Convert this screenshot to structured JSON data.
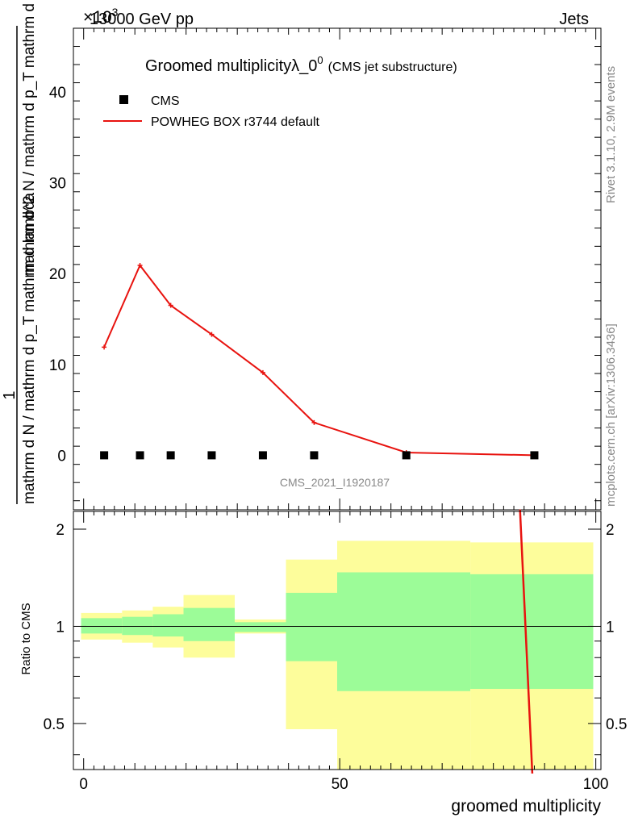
{
  "header": {
    "energy_label": "13000 GeV pp",
    "process_label": "Jets",
    "exponent_label": "×10",
    "exponent_power": "3"
  },
  "side_labels": {
    "rivet": "Rivet 3.1.10,  2.9M events",
    "mcplots": "mcplots.cern.ch [arXiv:1306.3436]"
  },
  "chart_data": [
    {
      "type": "line",
      "title": "Groomed multiplicityλ_0",
      "title_sup": "0",
      "title_suffix": "(CMS jet substructure)",
      "ylabel_numerator": "1",
      "ylabel_denominator": "mathrm d N / mathrm d p_T mathrm d lambda",
      "ylabel_top": "mathrm d^2 N / mathrm d p_T mathrm d lambda",
      "xlim": [
        -2,
        101
      ],
      "ylim": [
        -6,
        47
      ],
      "yticks": [
        0,
        10,
        20,
        30,
        40
      ],
      "ytick_labels": [
        "0",
        "10",
        "20",
        "30",
        "40"
      ],
      "watermark": "CMS_2021_I1920187",
      "legend": [
        {
          "name": "CMS",
          "marker": "square",
          "color": "#000000"
        },
        {
          "name": "POWHEG BOX r3744 default",
          "marker": "line",
          "color": "#e8130f"
        }
      ],
      "series": [
        {
          "name": "CMS",
          "x": [
            4,
            11,
            17,
            25,
            35,
            45,
            63,
            88
          ],
          "y": [
            0,
            0,
            0,
            0,
            0,
            0,
            0,
            0
          ]
        },
        {
          "name": "POWHEG BOX r3744 default",
          "x": [
            4,
            11,
            17,
            25,
            35,
            45,
            63,
            88
          ],
          "y": [
            11.9,
            20.9,
            16.5,
            13.3,
            9.1,
            3.6,
            0.3,
            0.0
          ]
        }
      ]
    },
    {
      "type": "area",
      "ylabel": "Ratio to CMS",
      "xlabel": "groomed multiplicity",
      "xlim": [
        -2,
        101
      ],
      "ylim": [
        0.36,
        2.27
      ],
      "yscale": "log",
      "xticks": [
        0,
        50,
        100
      ],
      "xtick_labels": [
        "0",
        "50",
        "100"
      ],
      "yticks": [
        0.5,
        1,
        2
      ],
      "ytick_labels": [
        "0.5",
        "1",
        "2"
      ],
      "bins": [
        {
          "x0": -0.5,
          "x1": 7.5,
          "inner": [
            0.95,
            1.06
          ],
          "outer": [
            0.91,
            1.1
          ]
        },
        {
          "x0": 7.5,
          "x1": 13.5,
          "inner": [
            0.94,
            1.07
          ],
          "outer": [
            0.89,
            1.12
          ]
        },
        {
          "x0": 13.5,
          "x1": 19.5,
          "inner": [
            0.93,
            1.09
          ],
          "outer": [
            0.86,
            1.15
          ]
        },
        {
          "x0": 19.5,
          "x1": 29.5,
          "inner": [
            0.9,
            1.14
          ],
          "outer": [
            0.8,
            1.25
          ]
        },
        {
          "x0": 29.5,
          "x1": 39.5,
          "inner": [
            0.96,
            1.03
          ],
          "outer": [
            0.95,
            1.05
          ]
        },
        {
          "x0": 39.5,
          "x1": 49.5,
          "inner": [
            0.78,
            1.27
          ],
          "outer": [
            0.48,
            1.61
          ]
        },
        {
          "x0": 49.5,
          "x1": 75.5,
          "inner": [
            0.63,
            1.47
          ],
          "outer": [
            0.36,
            1.84
          ]
        },
        {
          "x0": 75.5,
          "x1": 99.5,
          "inner": [
            0.64,
            1.45
          ],
          "outer": [
            0.36,
            1.82
          ]
        }
      ],
      "reference_line": 1,
      "ratio_series": {
        "name": "POWHEG BOX r3744 default",
        "x": [
          85.2,
          87.6
        ],
        "y": [
          2.3,
          0.35
        ]
      }
    }
  ],
  "colors": {
    "data": "#000000",
    "mc": "#e8130f",
    "band_inner": "#9cfc98",
    "band_outer": "#fdfd9b",
    "grey_text": "#888888"
  }
}
